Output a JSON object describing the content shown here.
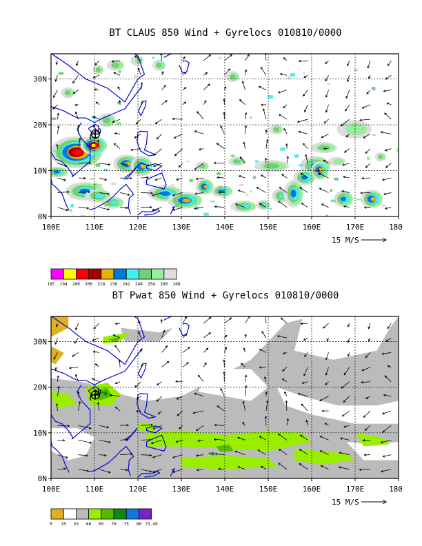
{
  "panels": [
    {
      "id": "claus",
      "title": "BT CLAUS 850 Wind + Gyrelocs 010810/0000",
      "lat_labels": [
        "30N",
        "20N",
        "10N",
        "0N"
      ],
      "lat_values": [
        30,
        20,
        10,
        0
      ],
      "lon_labels": [
        "100E",
        "110E",
        "120E",
        "130E",
        "140E",
        "150E",
        "160E",
        "170E",
        "180"
      ],
      "lon_values": [
        100,
        110,
        120,
        130,
        140,
        150,
        160,
        170,
        180
      ],
      "vector_label": "15 M/S",
      "legend": {
        "labels": [
          "185",
          "194",
          "200",
          "206",
          "218",
          "230",
          "242",
          "248",
          "254",
          "260",
          "268"
        ],
        "colors": [
          "#ff00ff",
          "#ffff00",
          "#ff0000",
          "#a00000",
          "#e8b000",
          "#0077dd",
          "#44eeee",
          "#77cc77",
          "#99ee99",
          "#dddddd"
        ]
      }
    },
    {
      "id": "pwat",
      "title": "BT Pwat 850 Wind + Gyrelocs 010810/0000",
      "lat_labels": [
        "30N",
        "20N",
        "10N",
        "0N"
      ],
      "lat_values": [
        30,
        20,
        10,
        0
      ],
      "lon_labels": [
        "100E",
        "110E",
        "120E",
        "130E",
        "140E",
        "150E",
        "160E",
        "170E",
        "180"
      ],
      "lon_values": [
        100,
        110,
        120,
        130,
        140,
        150,
        160,
        170,
        180
      ],
      "vector_label": "15 M/S",
      "legend": {
        "labels": [
          "0",
          "35",
          "55",
          "60",
          "65",
          "70",
          "75",
          "80",
          "73.49"
        ],
        "colors": [
          "#e0b020",
          "#ffffff",
          "#bbbbbb",
          "#99ee00",
          "#55bb00",
          "#118811",
          "#1177dd",
          "#7722cc"
        ]
      }
    }
  ],
  "gyre_symbol": "cyclone-icon",
  "colors": {
    "coast": "#0000dd",
    "grid": "#000000",
    "arrow": "#000000"
  }
}
